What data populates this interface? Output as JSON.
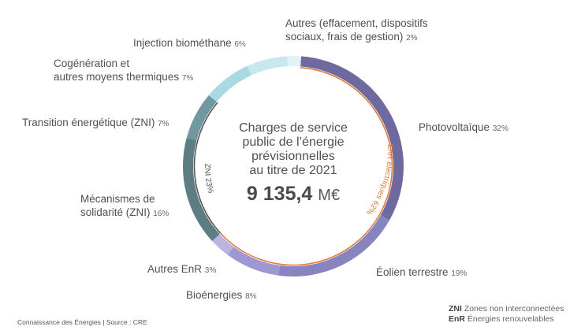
{
  "chart_data": {
    "type": "pie",
    "title": "Charges de service public de l’énergie prévisionnelles au titre de 2021",
    "total_value": "9 135,4",
    "total_unit": "M€",
    "slices": [
      {
        "name": "Photovoltaïque",
        "pct_label": "32%",
        "value": 32,
        "color": "#6e6a9f"
      },
      {
        "name": "Éolien terrestre",
        "pct_label": "19%",
        "value": 19,
        "color": "#8784c0"
      },
      {
        "name": "Bioénergies",
        "pct_label": "8%",
        "value": 8,
        "color": "#9d98d2"
      },
      {
        "name": "Autres EnR",
        "pct_label": "3%",
        "value": 3,
        "color": "#b9b5e0"
      },
      {
        "name": "Mécanismes de solidarité (ZNI)",
        "pct_label": "16%",
        "value": 16,
        "color": "#5c7d82"
      },
      {
        "name": "Transition énergétique (ZNI)",
        "pct_label": "7%",
        "value": 7,
        "color": "#6f98a0"
      },
      {
        "name": "Cogénération et autres moyens thermiques",
        "pct_label": "7%",
        "value": 7,
        "color": "#a9d9e2"
      },
      {
        "name": "Injection biométhane",
        "pct_label": "6%",
        "value": 6,
        "color": "#c8e8ee"
      },
      {
        "name": "Autres (effacement, dispositifs sociaux, frais de gestion)",
        "pct_label": "2%",
        "value": 2,
        "color": "#e2f3f6"
      }
    ],
    "groups": [
      {
        "label": "EnR électriques 62%",
        "from_slice": 0,
        "to_slice": 3,
        "color": "#e07b3c"
      },
      {
        "label": "ZNI 23%",
        "from_slice": 4,
        "to_slice": 5,
        "color": "#555555"
      }
    ]
  },
  "labels": {
    "photovoltaique": {
      "name": "Photovoltaïque",
      "pct": "32%"
    },
    "eolien": {
      "name": "Éolien terrestre",
      "pct": "19%"
    },
    "bioenergies": {
      "name": "Bioénergies",
      "pct": "8%"
    },
    "autres_enr": {
      "name": "Autres EnR",
      "pct": "3%"
    },
    "mecanismes": {
      "line1": "Mécanismes de",
      "line2": "solidarité (ZNI)",
      "pct": "16%"
    },
    "transition": {
      "name": "Transition énergétique (ZNI)",
      "pct": "7%"
    },
    "cogeneration": {
      "line1": "Cogénération et",
      "line2": "autres moyens thermiques",
      "pct": "7%"
    },
    "biomethane": {
      "name": "Injection biométhane",
      "pct": "6%"
    },
    "autres": {
      "line1": "Autres (effacement, dispositifs",
      "line2": "sociaux, frais de gestion)",
      "pct": "2%"
    }
  },
  "center": {
    "line1": "Charges de service",
    "line2": "public de l’énergie",
    "line3": "prévisionnelles",
    "line4": "au titre de 2021",
    "total": "9 135,4",
    "unit": "M€"
  },
  "legend": {
    "zni_abbr": "ZNI",
    "zni_text": "Zones non interconnectées",
    "enr_abbr": "EnR",
    "enr_text": "Énergies renouvelables"
  },
  "source": "Connaissance des Énergies | Source : CRE"
}
